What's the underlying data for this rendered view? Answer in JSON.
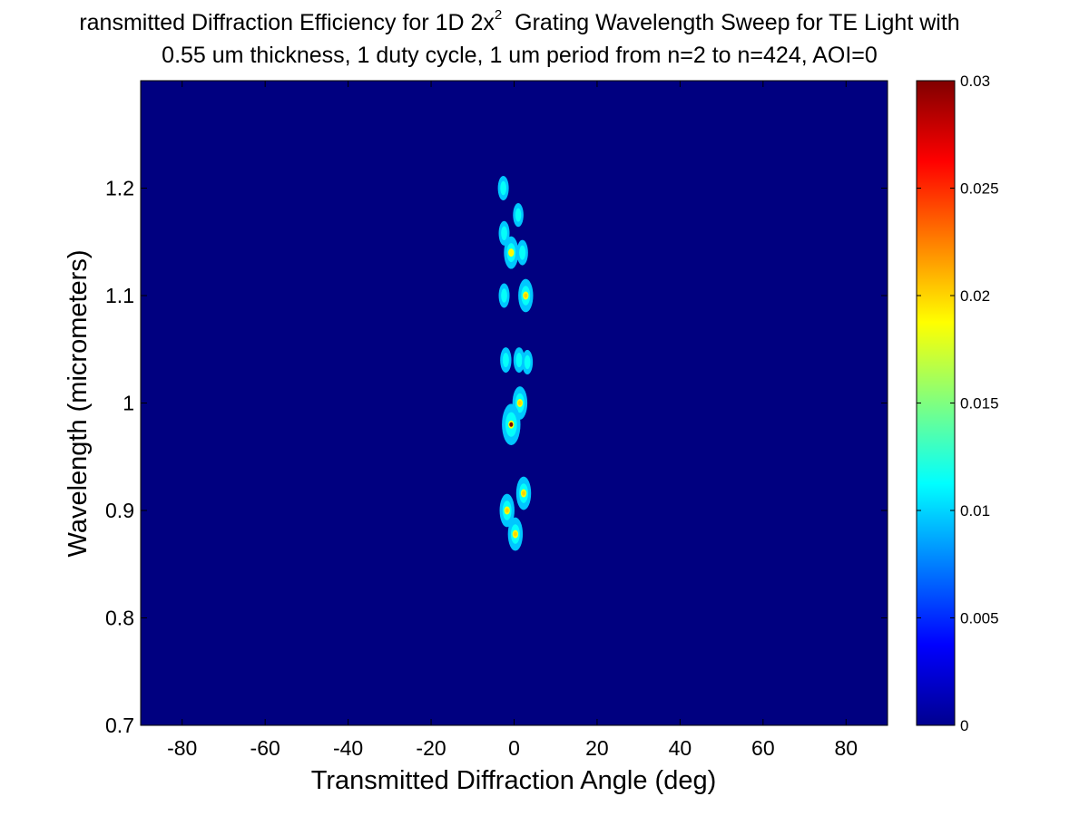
{
  "chart_data": {
    "type": "heatmap",
    "title": {
      "line1_main": "ransmitted Diffraction Efficiency for 1D 2x",
      "line1_sup": "2",
      "line1_rest": "  Grating Wavelength Sweep for TE Light with",
      "line2": "0.55 um thickness, 1 duty cycle, 1 um period from n=2 to n=424, AOI=0"
    },
    "xlabel": "Transmitted Diffraction Angle (deg)",
    "ylabel": "Wavelength (micrometers)",
    "xlim": [
      -90,
      90
    ],
    "ylim": [
      0.7,
      1.3
    ],
    "x_ticks": [
      -80,
      -60,
      -40,
      -20,
      0,
      20,
      40,
      60,
      80
    ],
    "x_tick_labels": [
      "-80",
      "-60",
      "-40",
      "-20",
      "0",
      "20",
      "40",
      "60",
      "80"
    ],
    "y_ticks": [
      0.7,
      0.8,
      0.9,
      1.0,
      1.1,
      1.2
    ],
    "y_tick_labels": [
      "0.7",
      "0.8",
      "0.9",
      "1",
      "1.1",
      "1.2"
    ],
    "colormap": "jet",
    "background_value": 0,
    "colorbar": {
      "range": [
        0,
        0.03
      ],
      "ticks": [
        0,
        0.005,
        0.01,
        0.015,
        0.02,
        0.025,
        0.03
      ],
      "tick_labels": [
        "0",
        "0.005",
        "0.01",
        "0.015",
        "0.02",
        "0.025",
        "0.03"
      ]
    },
    "hotspots": [
      {
        "angle": -2.6,
        "wavelength": 1.2,
        "value": 0.009
      },
      {
        "angle": 1.0,
        "wavelength": 1.175,
        "value": 0.008
      },
      {
        "angle": -2.4,
        "wavelength": 1.158,
        "value": 0.009
      },
      {
        "angle": -0.7,
        "wavelength": 1.14,
        "value": 0.019
      },
      {
        "angle": 2.0,
        "wavelength": 1.14,
        "value": 0.01
      },
      {
        "angle": 2.8,
        "wavelength": 1.1,
        "value": 0.02
      },
      {
        "angle": -2.4,
        "wavelength": 1.1,
        "value": 0.009
      },
      {
        "angle": -2.0,
        "wavelength": 1.04,
        "value": 0.01
      },
      {
        "angle": 1.2,
        "wavelength": 1.04,
        "value": 0.01
      },
      {
        "angle": 3.2,
        "wavelength": 1.038,
        "value": 0.009
      },
      {
        "angle": 1.4,
        "wavelength": 1.0,
        "value": 0.02
      },
      {
        "angle": -0.7,
        "wavelength": 0.98,
        "value": 0.03
      },
      {
        "angle": -1.7,
        "wavelength": 0.9,
        "value": 0.02
      },
      {
        "angle": 2.3,
        "wavelength": 0.916,
        "value": 0.02
      },
      {
        "angle": 0.3,
        "wavelength": 0.878,
        "value": 0.02
      }
    ]
  }
}
